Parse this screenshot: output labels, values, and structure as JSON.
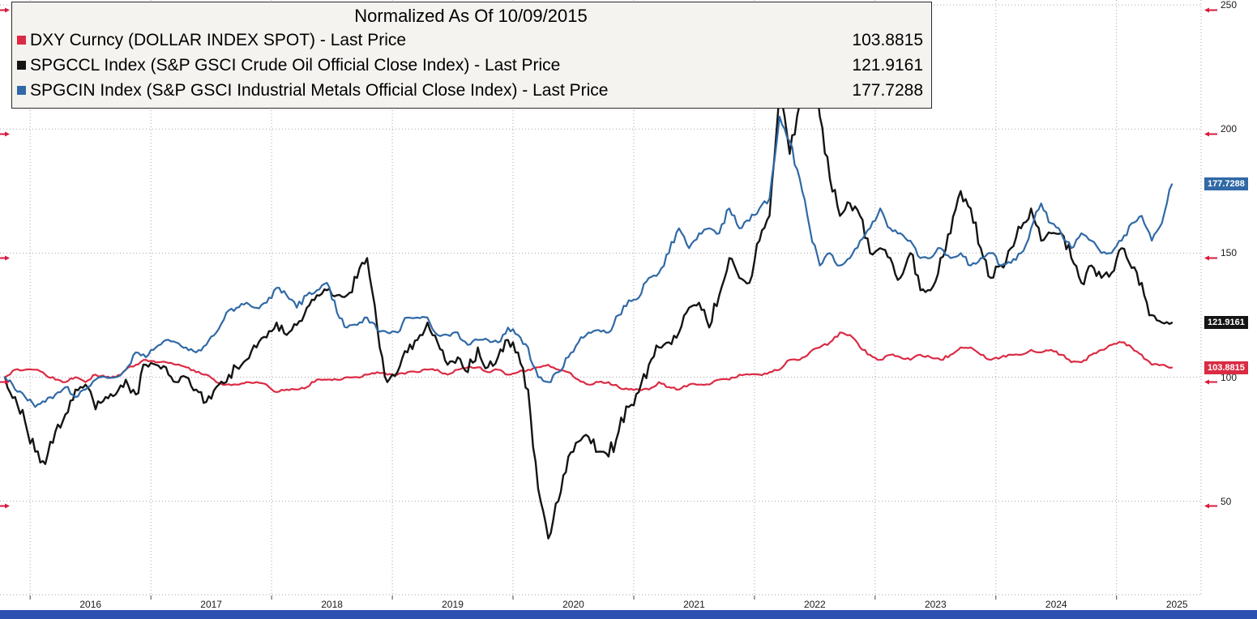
{
  "chart_data": {
    "type": "line",
    "title": "Normalized As Of 10/09/2015",
    "x_start": 2015.7917,
    "x_step": 0.0833333,
    "xlim": [
      2015.75,
      2025.7
    ],
    "ylim": [
      12,
      252
    ],
    "y_ticks": [
      50,
      100,
      150,
      200,
      250
    ],
    "x_tick_years": [
      2016,
      2017,
      2018,
      2019,
      2020,
      2021,
      2022,
      2023,
      2024,
      2025
    ],
    "grid": true,
    "legend_position": "top-left",
    "series": [
      {
        "id": "dxy",
        "name": "DXY Curncy",
        "label": "DXY Curncy (DOLLAR INDEX SPOT) - Last Price",
        "last_price": "103.8815",
        "color": "#db2b44",
        "values": [
          100,
          103,
          103,
          103,
          101,
          99,
          98,
          100,
          98,
          101,
          100,
          100,
          103,
          105,
          107,
          106,
          106,
          105,
          104,
          102,
          101,
          98,
          97,
          97,
          98,
          98,
          97,
          94,
          95,
          95,
          96,
          99,
          99,
          99,
          100,
          100,
          101,
          102,
          101,
          101,
          102,
          102,
          103,
          103,
          101,
          103,
          104,
          104,
          102,
          103,
          101,
          102,
          103,
          104,
          105,
          103,
          102,
          99,
          97,
          98,
          98,
          96,
          95,
          95,
          95,
          98,
          96,
          95,
          97,
          97,
          97,
          99,
          99,
          101,
          101,
          101,
          102,
          103,
          107,
          107,
          110,
          112,
          114,
          118,
          117,
          112,
          109,
          107,
          109,
          108,
          107,
          109,
          108,
          107,
          109,
          112,
          112,
          109,
          107,
          108,
          109,
          109,
          111,
          110,
          111,
          109,
          106,
          106,
          109,
          111,
          113,
          114,
          112,
          109,
          105,
          105,
          103.88
        ]
      },
      {
        "id": "spgccl",
        "name": "SPGCCL Index",
        "label": "SPGCCL Index (S&P GSCI Crude Oil Official Close Index) - Last Price",
        "last_price": "121.9161",
        "color": "#141414",
        "values": [
          100,
          92,
          82,
          70,
          65,
          78,
          85,
          95,
          97,
          87,
          92,
          93,
          99,
          93,
          105,
          105,
          104,
          98,
          100,
          95,
          90,
          96,
          98,
          104,
          107,
          112,
          116,
          122,
          117,
          121,
          128,
          133,
          135,
          133,
          133,
          140,
          148,
          120,
          98,
          102,
          110,
          115,
          122,
          114,
          105,
          108,
          102,
          112,
          104,
          108,
          115,
          110,
          95,
          55,
          35,
          50,
          68,
          74,
          76,
          70,
          68,
          78,
          88,
          94,
          105,
          112,
          114,
          118,
          128,
          130,
          120,
          133,
          148,
          140,
          138,
          155,
          165,
          215,
          190,
          210,
          245,
          205,
          180,
          165,
          170,
          165,
          150,
          152,
          148,
          140,
          150,
          135,
          135,
          148,
          158,
          175,
          168,
          152,
          140,
          145,
          152,
          160,
          168,
          155,
          158,
          158,
          148,
          138,
          145,
          140,
          142,
          152,
          144,
          138,
          125,
          122,
          121.92
        ]
      },
      {
        "id": "spgcin",
        "name": "SPGCIN Index",
        "label": "SPGCIN Index (S&P GSCI Industrial Metals Official Close Index) - Last Price",
        "last_price": "177.7288",
        "color": "#3069a6",
        "values": [
          100,
          95,
          92,
          88,
          90,
          93,
          96,
          92,
          95,
          99,
          100,
          100,
          103,
          110,
          108,
          112,
          115,
          114,
          112,
          110,
          113,
          118,
          126,
          128,
          130,
          128,
          130,
          136,
          133,
          128,
          133,
          135,
          138,
          126,
          120,
          121,
          124,
          119,
          118,
          118,
          124,
          124,
          124,
          117,
          117,
          118,
          113,
          115,
          115,
          114,
          120,
          117,
          112,
          100,
          98,
          102,
          108,
          114,
          118,
          119,
          118,
          125,
          131,
          132,
          140,
          142,
          150,
          160,
          152,
          158,
          160,
          158,
          168,
          160,
          163,
          168,
          172,
          205,
          195,
          180,
          160,
          145,
          150,
          145,
          148,
          155,
          160,
          168,
          160,
          158,
          155,
          148,
          148,
          152,
          148,
          150,
          145,
          148,
          150,
          145,
          146,
          150,
          160,
          170,
          162,
          158,
          152,
          158,
          155,
          150,
          150,
          155,
          162,
          165,
          155,
          162,
          177.73
        ]
      }
    ]
  },
  "ui": {
    "grid_color": "#a6a6a6",
    "tick_arrow_color": "#d8193c",
    "legend_background": "#f4f3f0",
    "bottom_bar_color": "#2d51b0",
    "background_color": "#ffffff"
  }
}
